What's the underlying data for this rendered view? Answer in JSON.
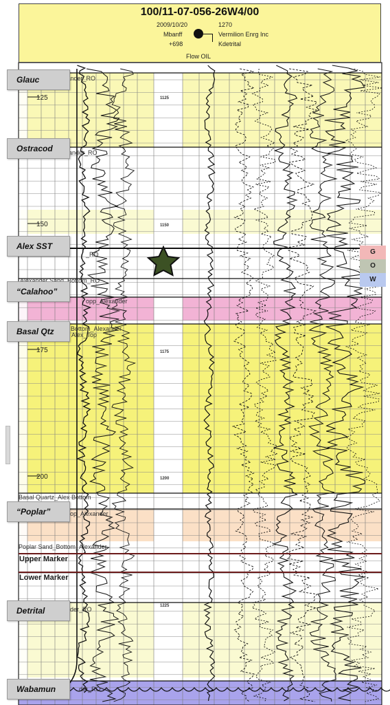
{
  "header": {
    "well_id": "100/11-07-056-26W4/00",
    "date": "2009/10/20",
    "field": "Mbanff",
    "elevation": "+698",
    "depth": "1270",
    "operator": "Vermilion Enrg Inc",
    "formation": "Kdetrital",
    "status": "Flow OIL"
  },
  "formation_labels": [
    {
      "label": "Glauc"
    },
    {
      "label": "Ostracod"
    },
    {
      "label": "Alex SST"
    },
    {
      "label": "“Calahoo”"
    },
    {
      "label": "Basal Qtz"
    },
    {
      "label": "“Poplar”"
    },
    {
      "label": "Detrital"
    },
    {
      "label": "Wabamun"
    }
  ],
  "fluid_legend": [
    {
      "label": "G",
      "color": "#f2b8b8"
    },
    {
      "label": "O",
      "color": "#bfc5b3"
    },
    {
      "label": "W",
      "color": "#b9c9ef"
    }
  ],
  "depth_ticks": [
    "125",
    "150",
    "175",
    "200"
  ],
  "track_depths": [
    "1125",
    "1150",
    "1175",
    "1200",
    "1225"
  ],
  "log_picks": [
    "Alexander_RO",
    "ander_RO",
    "_RO",
    "Alexander Sand_Bottom_RO",
    "opp_Alexander",
    "Bottom_Alexander",
    "Alex_Top",
    "Basal Quartz_Alex Bottom",
    "op_Alexander",
    "Poplar Sand_Bottom_Alexander",
    "ander_RO",
    "der_RO"
  ],
  "markers": [
    "Upper Marker",
    "Lower Marker"
  ],
  "colors": {
    "header_bg": "#fbf59a",
    "yellow_zone": "#f6f27a",
    "pale_yellow": "#fafad2",
    "pink_zone": "#f2b3d5",
    "peach_zone": "#fbe0c6",
    "purple_zone": "#a9a3ec",
    "star": "#3c5124",
    "marker_line": "#6b1a1a"
  }
}
